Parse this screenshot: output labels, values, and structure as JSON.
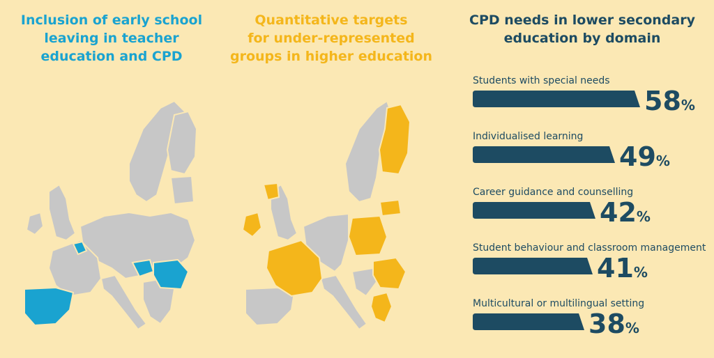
{
  "colors": {
    "background": "#fbe8b4",
    "map_grey": "#c7c7c7",
    "highlight_blue": "#1aa3d0",
    "highlight_yellow": "#f4b61b",
    "bar_dark": "#1d4b62"
  },
  "panel1": {
    "title_lines": [
      "Inclusion of early school",
      "leaving in teacher",
      "education and CPD"
    ]
  },
  "panel2": {
    "title_lines": [
      "Quantitative targets",
      "for under-represented",
      "groups in higher education"
    ]
  },
  "panel3": {
    "title_lines": [
      "CPD needs in lower secondary",
      "education by domain"
    ]
  },
  "chart_data": {
    "type": "bar",
    "orientation": "horizontal",
    "title": "CPD needs in lower secondary education by domain",
    "categories": [
      "Students with special needs",
      "Individualised learning",
      "Career guidance and counselling",
      "Student behaviour and classroom management",
      "Multicultural or multilingual setting"
    ],
    "values": [
      58,
      49,
      42,
      41,
      38
    ],
    "unit": "%",
    "xlim": [
      0,
      60
    ],
    "grid": false,
    "legend": "none"
  }
}
